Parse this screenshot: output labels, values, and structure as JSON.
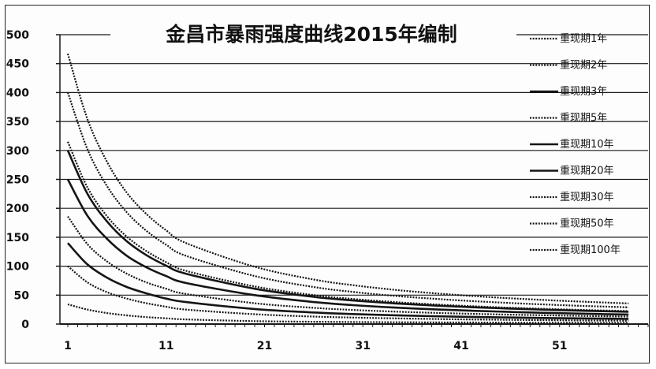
{
  "chart_data": {
    "type": "line",
    "title": "金昌市暴雨强度曲线2015年编制",
    "xlabel": "",
    "ylabel": "",
    "ylim": [
      0,
      500
    ],
    "xlim": [
      1,
      60
    ],
    "y_ticks": [
      "0",
      "50",
      "100",
      "150",
      "200",
      "250",
      "300",
      "350",
      "400",
      "450",
      "500"
    ],
    "x_ticks": [
      "1",
      "11",
      "21",
      "31",
      "41",
      "51"
    ],
    "grid": "horizontal",
    "legend_position": "right",
    "series": [
      {
        "name": "重现期1年",
        "style": "dotted",
        "values": [
          34,
          25,
          19,
          15,
          12,
          10,
          8,
          5,
          4
        ]
      },
      {
        "name": "重现期2年",
        "style": "dotted",
        "values": [
          100,
          72,
          55,
          44,
          36,
          30,
          25,
          17,
          13
        ]
      },
      {
        "name": "重现期3年",
        "style": "solid",
        "values": [
          140,
          103,
          80,
          64,
          53,
          44,
          38,
          26,
          20
        ]
      },
      {
        "name": "重现期5年",
        "style": "dotted",
        "values": [
          186,
          138,
          108,
          87,
          72,
          61,
          52,
          36,
          28
        ]
      },
      {
        "name": "重现期10年",
        "style": "solid",
        "values": [
          250,
          187,
          147,
          118,
          98,
          83,
          71,
          50,
          38
        ]
      },
      {
        "name": "重现期20年",
        "style": "solid",
        "values": [
          300,
          225,
          177,
          143,
          119,
          101,
          87,
          61,
          47
        ]
      },
      {
        "name": "重现期30年",
        "style": "dotted",
        "values": [
          315,
          236,
          186,
          151,
          126,
          107,
          92,
          65,
          50
        ]
      },
      {
        "name": "重现期50年",
        "style": "dotted",
        "values": [
          400,
          302,
          238,
          193,
          161,
          137,
          118,
          83,
          64
        ]
      },
      {
        "name": "重现期100年",
        "style": "dotted",
        "values": [
          467,
          354,
          280,
          227,
          190,
          162,
          140,
          99,
          77
        ]
      }
    ],
    "x": [
      1,
      3,
      5,
      7,
      9,
      11,
      13,
      20,
      26
    ]
  }
}
